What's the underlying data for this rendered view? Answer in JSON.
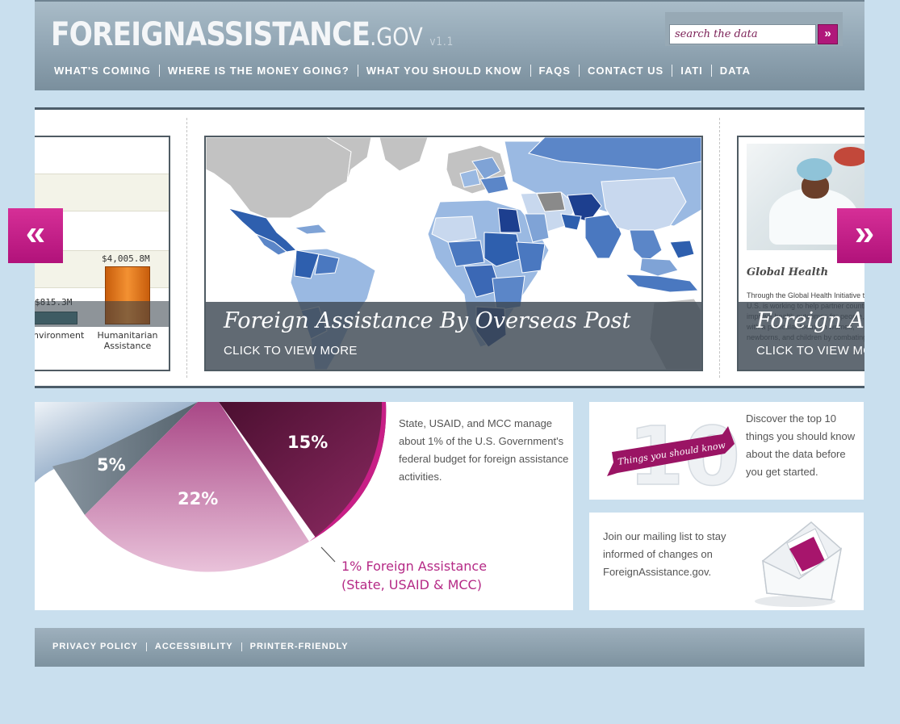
{
  "header": {
    "logo_main": "FOREIGNASSISTANCE",
    "logo_suffix": ".GOV",
    "logo_version": "v1.1",
    "search_placeholder": "search the data",
    "search_button": "»",
    "nav": [
      "WHAT'S COMING",
      "WHERE IS THE MONEY GOING?",
      "WHAT YOU SHOULD KNOW",
      "FAQS",
      "CONTACT US",
      "IATI",
      "DATA"
    ]
  },
  "carousel": {
    "prev_label": "«",
    "next_label": "»",
    "left_slide": {
      "bars": [
        {
          "label": "$815.3M",
          "category": "Environment",
          "category_visible": "nvironment"
        },
        {
          "label": "$4,005.8M",
          "category": "Humanitarian Assistance",
          "category_visible": "Humanitarian\nAssistance"
        }
      ],
      "bar_color_orange": "#f08a2a",
      "bar_color_teal": "#4f8088"
    },
    "center_slide": {
      "title": "Foreign Assistance By Overseas Post",
      "link": "CLICK TO VIEW MORE"
    },
    "right_slide": {
      "heading": "Global Health",
      "text": "Through the Global Health Initiative the U.S. is working to help partner countries improve health outcomes for people, with a particular focus on women, newborns, and children by combating...",
      "title": "Foreign Assistance",
      "link": "CLICK TO VIEW MORE"
    }
  },
  "pie_panel": {
    "slices": [
      {
        "label": "15%",
        "color": "#6e1748"
      },
      {
        "label": "5%",
        "color": "#6f7f89"
      },
      {
        "label": "22%",
        "color": "#c76aa2"
      },
      {
        "label": "1%",
        "color": "#c81f86"
      }
    ],
    "text": "State, USAID, and MCC manage about 1% of the U.S. Government's federal budget for foreign assistance activities.",
    "note_line1": "1% Foreign Assistance",
    "note_line2": "(State, USAID & MCC)"
  },
  "things_panel": {
    "ribbon": "Things you should know",
    "big_number": "10",
    "text": "Discover the top 10 things you should know about the data before you get started."
  },
  "mail_panel": {
    "text": "Join our mailing list to stay informed of changes on ForeignAssistance.gov."
  },
  "footer": {
    "links": [
      "PRIVACY POLICY",
      "ACCESSIBILITY",
      "PRINTER-FRIENDLY"
    ]
  },
  "colors": {
    "accent": "#b0177a",
    "header_bg": "#94a8b6",
    "page_bg": "#c9dfee"
  }
}
